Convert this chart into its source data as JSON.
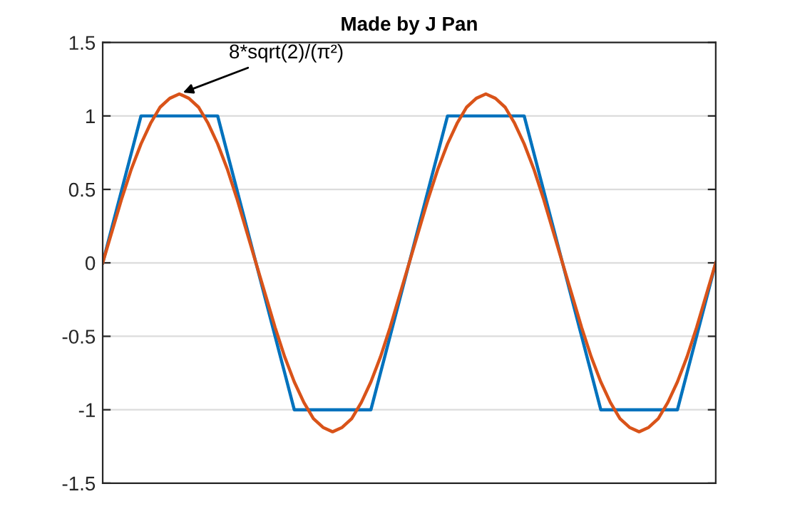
{
  "chart_data": {
    "type": "line",
    "title": "Made by J Pan",
    "categories": [
      null,
      null,
      null,
      null,
      null,
      null,
      null,
      null,
      null,
      null,
      null,
      null,
      null,
      null,
      null,
      null,
      null,
      null,
      null,
      null,
      null,
      null,
      null,
      null,
      null,
      null,
      null,
      null,
      null,
      null,
      null,
      null,
      null,
      null,
      null,
      null,
      null,
      null,
      null,
      null,
      null,
      null,
      null,
      null,
      null,
      null,
      null,
      null,
      null,
      null,
      null,
      null,
      null,
      null,
      null,
      null,
      null,
      null,
      null,
      null,
      null,
      null,
      null,
      null,
      null
    ],
    "ylim": [
      -1.5,
      1.5
    ],
    "yticks": [
      -1.5,
      -1,
      -0.5,
      0,
      0.5,
      1,
      1.5
    ],
    "grid": "y",
    "line_style": "solid",
    "marker": "none",
    "series": [
      {
        "color": "#0072bd",
        "values": [
          0,
          0.25,
          0.5,
          0.75,
          1,
          1,
          1,
          1,
          1,
          1,
          1,
          1,
          1,
          0.75,
          0.5,
          0.25,
          0,
          -0.25,
          -0.5,
          -0.75,
          -1,
          -1,
          -1,
          -1,
          -1,
          -1,
          -1,
          -1,
          -1,
          -0.75,
          -0.5,
          -0.25,
          0,
          0.25,
          0.5,
          0.75,
          1,
          1,
          1,
          1,
          1,
          1,
          1,
          1,
          1,
          0.75,
          0.5,
          0.25,
          0,
          -0.25,
          -0.5,
          -0.75,
          -1,
          -1,
          -1,
          -1,
          -1,
          -1,
          -1,
          -1,
          -1,
          -0.75,
          -0.5,
          -0.25,
          0
        ]
      },
      {
        "color": "#d95319",
        "values": [
          0,
          0.22,
          0.44,
          0.64,
          0.81,
          0.95,
          1.06,
          1.12,
          1.15,
          1.12,
          1.06,
          0.95,
          0.81,
          0.64,
          0.44,
          0.22,
          0,
          -0.22,
          -0.44,
          -0.64,
          -0.81,
          -0.95,
          -1.06,
          -1.12,
          -1.15,
          -1.12,
          -1.06,
          -0.95,
          -0.81,
          -0.64,
          -0.44,
          -0.22,
          0,
          0.22,
          0.44,
          0.64,
          0.81,
          0.95,
          1.06,
          1.12,
          1.15,
          1.12,
          1.06,
          0.95,
          0.81,
          0.64,
          0.44,
          0.22,
          0,
          -0.22,
          -0.44,
          -0.64,
          -0.81,
          -0.95,
          -1.06,
          -1.12,
          -1.15,
          -1.12,
          -1.06,
          -0.95,
          -0.81,
          -0.64,
          -0.44,
          -0.22,
          0
        ]
      }
    ],
    "annotations": [
      "8*sqrt(2)/(π²)"
    ]
  }
}
